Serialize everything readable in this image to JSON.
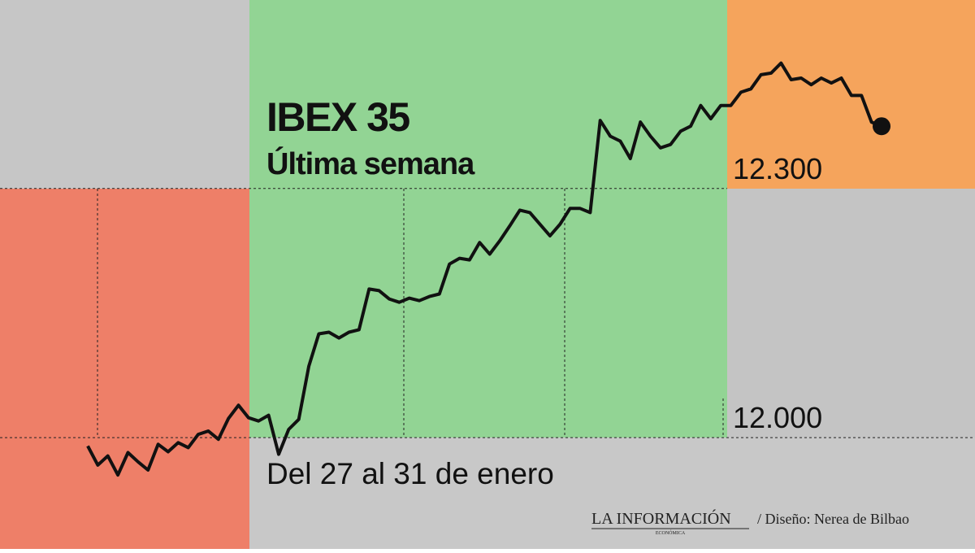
{
  "chart_data": {
    "type": "line",
    "title": "IBEX 35",
    "subtitle": "Última semana",
    "annotation": "Del 27 al 31 de enero",
    "source": "LA INFORMACIÓN",
    "source_subtitle": "ECONÓMICA",
    "credit": "/ Diseño: Nerea de Bilbao",
    "color": "#111111",
    "values": [
      11990,
      11967,
      11978,
      11955,
      11982,
      11971,
      11961,
      11992,
      11983,
      11994,
      11988,
      12004,
      12008,
      11998,
      12023,
      12039,
      12024,
      12020,
      12027,
      11980,
      12010,
      12022,
      12086,
      12125,
      12127,
      12120,
      12127,
      12130,
      12179,
      12177,
      12167,
      12163,
      12168,
      12165,
      12170,
      12173,
      12209,
      12216,
      12214,
      12235,
      12221,
      12237,
      12255,
      12274,
      12271,
      12257,
      12243,
      12257,
      12276,
      12276,
      12271,
      12382,
      12363,
      12357,
      12336,
      12380,
      12363,
      12349,
      12353,
      12369,
      12375,
      12400,
      12384,
      12400,
      12400,
      12416,
      12420,
      12437,
      12439,
      12451,
      12431,
      12433,
      12425,
      12433,
      12427,
      12433,
      12412,
      12412,
      12380,
      12375
    ],
    "ylim": [
      11866,
      12527
    ],
    "yticks": [
      {
        "value": 12000,
        "label": "12.000"
      },
      {
        "value": 12300,
        "label": "12.300"
      }
    ],
    "grid": true
  }
}
